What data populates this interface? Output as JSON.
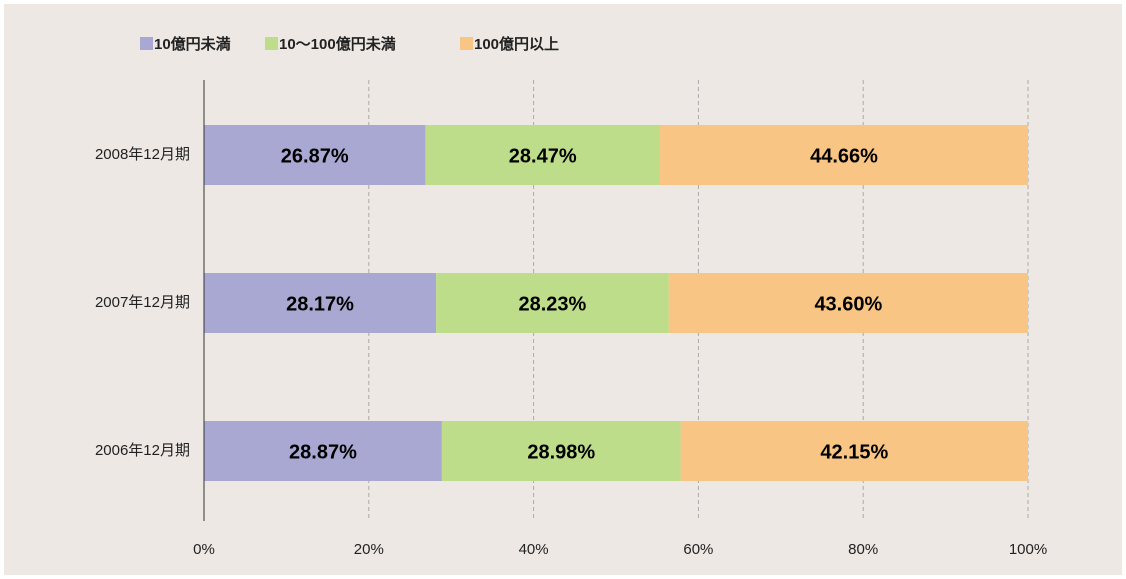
{
  "chart_data": {
    "type": "stacked_barh",
    "categories": [
      "2008年12月期",
      "2007年12月期",
      "2006年12月期"
    ],
    "series": [
      {
        "name": "10億円未満",
        "color": "#a9a8d2",
        "values": [
          26.87,
          28.17,
          28.87
        ],
        "value_labels": [
          "26.87%",
          "28.17%",
          "28.87%"
        ]
      },
      {
        "name": "10～100億円未満",
        "color": "#bedd8a",
        "values": [
          28.47,
          28.23,
          28.98
        ],
        "value_labels": [
          "28.47%",
          "28.23%",
          "28.98%"
        ]
      },
      {
        "name": "100億円以上",
        "color": "#f8c584",
        "values": [
          44.66,
          43.6,
          42.15
        ],
        "value_labels": [
          "44.66%",
          "43.60%",
          "42.15%"
        ]
      }
    ],
    "xlim": [
      0,
      100
    ],
    "xticks": [
      {
        "value": 0,
        "label": "0%"
      },
      {
        "value": 20,
        "label": "20%"
      },
      {
        "value": 40,
        "label": "40%"
      },
      {
        "value": 60,
        "label": "60%"
      },
      {
        "value": 80,
        "label": "80%"
      },
      {
        "value": 100,
        "label": "100%"
      }
    ],
    "grid": true,
    "legend": "top"
  }
}
